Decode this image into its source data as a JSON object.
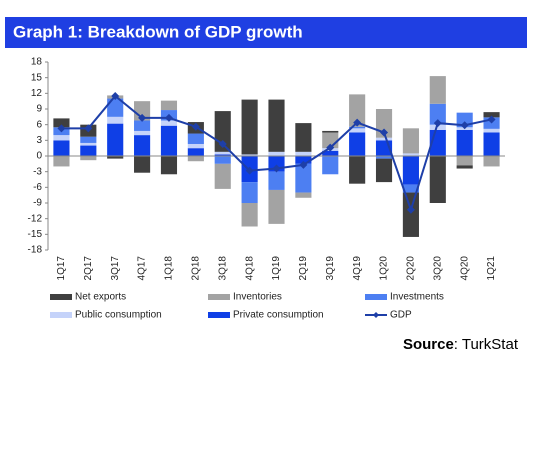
{
  "chart_data": {
    "type": "stacked_bar_line",
    "title": "Graph 1: Breakdown of GDP growth",
    "categories": [
      "1Q17",
      "2Q17",
      "3Q17",
      "4Q17",
      "1Q18",
      "2Q18",
      "3Q18",
      "4Q18",
      "1Q19",
      "2Q19",
      "3Q19",
      "4Q19",
      "1Q20",
      "2Q20",
      "3Q20",
      "4Q20",
      "1Q21"
    ],
    "series": [
      {
        "name": "Net exports",
        "color": "#3f3f3f",
        "values": [
          1.7,
          2.3,
          -0.5,
          -3.2,
          -3.5,
          2.2,
          7.8,
          10.5,
          10,
          5.5,
          0.3,
          -5.3,
          -4.5,
          -8.5,
          -9,
          -0.6,
          1
        ]
      },
      {
        "name": "Inventories",
        "color": "#a3a3a3",
        "values": [
          -2,
          -0.8,
          0.6,
          3.7,
          1.8,
          -1,
          -4.8,
          -4.5,
          -6.5,
          -1,
          3,
          6.2,
          5.5,
          4.8,
          5.3,
          -1.8,
          -2
        ]
      },
      {
        "name": "Investments",
        "color": "#4d7ff2",
        "values": [
          1.5,
          1.2,
          3.5,
          2,
          2,
          2,
          -1.5,
          -4,
          -3.5,
          -5.5,
          -3.5,
          0.3,
          -0.5,
          -1.5,
          4,
          2.8,
          2.2
        ]
      },
      {
        "name": "Public consumption",
        "color": "#c5d3fa",
        "values": [
          1,
          0.5,
          1.3,
          0.8,
          1,
          0.8,
          0.5,
          0.3,
          0.8,
          0.8,
          0.5,
          0.8,
          0.5,
          0.5,
          1,
          0.5,
          0.7
        ]
      },
      {
        "name": "Private consumption",
        "color": "#0f3fe6",
        "values": [
          3,
          2,
          6.2,
          4,
          5.8,
          1.5,
          0.3,
          -5,
          -3,
          -1.5,
          1,
          4.5,
          3,
          -5.5,
          5,
          5,
          4.5
        ]
      },
      {
        "name": "GDP",
        "type": "line",
        "color": "#1e3fa8",
        "values": [
          5.3,
          5.3,
          11.5,
          7.3,
          7.3,
          5.6,
          2.3,
          -2.8,
          -2.4,
          -1.7,
          1.6,
          6.4,
          4.5,
          -10.3,
          6.3,
          5.9,
          7.0
        ]
      }
    ],
    "ylim": [
      -18,
      18
    ],
    "yticks": [
      -18,
      -15,
      -12,
      -9,
      -6,
      -3,
      0,
      3,
      6,
      9,
      12,
      15,
      18
    ],
    "grid": false,
    "source": {
      "label": "Source",
      "text": ": TurkStat"
    }
  }
}
